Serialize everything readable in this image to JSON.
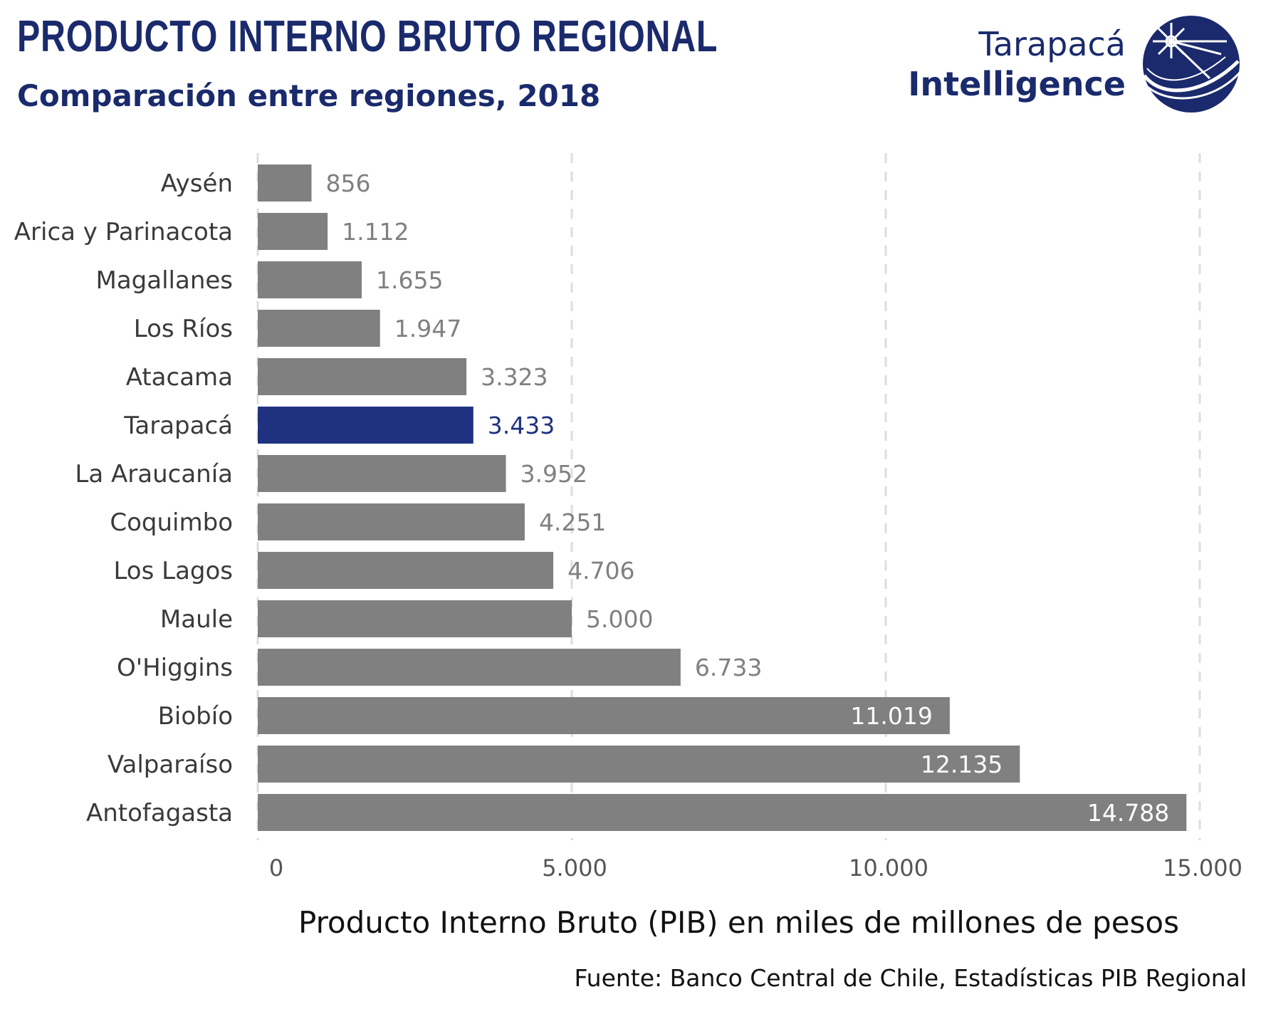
{
  "header": {
    "title": "PRODUCTO INTERNO BRUTO REGIONAL",
    "subtitle": "Comparación entre regiones, 2018"
  },
  "logo": {
    "line1": "Tarapacá",
    "line2": "Intelligence",
    "icon": "compass-globe-icon"
  },
  "source": "Fuente: Banco Central de Chile, Estadísticas PIB Regional",
  "colors": {
    "brand": "#1a2a6c",
    "highlight_bar": "#1f3282",
    "default_bar": "#808080",
    "value_label": "#808080",
    "value_label_inside": "#ffffff",
    "grid": "#dddddd",
    "axis_text": "#555555"
  },
  "chart_data": {
    "type": "bar",
    "orientation": "horizontal",
    "categories": [
      "Aysén",
      "Arica y Parinacota",
      "Magallanes",
      "Los Ríos",
      "Atacama",
      "Tarapacá",
      "La Araucanía",
      "Coquimbo",
      "Los Lagos",
      "Maule",
      "O'Higgins",
      "Biobío",
      "Valparaíso",
      "Antofagasta"
    ],
    "values": [
      856,
      1112,
      1655,
      1947,
      3323,
      3433,
      3952,
      4251,
      4706,
      5000,
      6733,
      11019,
      12135,
      14788
    ],
    "value_labels": [
      "856",
      "1.112",
      "1.655",
      "1.947",
      "3.323",
      "3.433",
      "3.952",
      "4.251",
      "4.706",
      "5.000",
      "6.733",
      "11.019",
      "12.135",
      "14.788"
    ],
    "highlight": "Tarapacá",
    "xlabel": "Producto Interno Bruto (PIB) en miles de millones de pesos",
    "ylabel": "",
    "xlim": [
      0,
      15000
    ],
    "xticks": [
      0,
      5000,
      10000,
      15000
    ],
    "xtick_labels": [
      "0",
      "5.000",
      "10.000",
      "15.000"
    ],
    "grid": "vertical-dashed",
    "legend": "none"
  }
}
